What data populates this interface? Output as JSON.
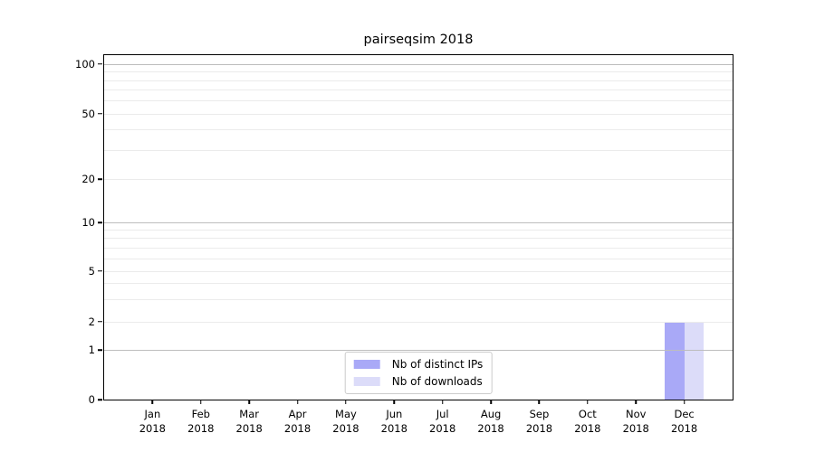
{
  "title": "pairseqsim 2018",
  "colors": {
    "bar_distinct_ips": "#a9a9f7",
    "bar_downloads": "#dcdcf9",
    "grid_major": "#bdbdbd",
    "grid_minor": "#ebebeb",
    "spine": "#000000",
    "legend_border": "#cccccc",
    "background": "#ffffff"
  },
  "legend": {
    "items": [
      {
        "label": "Nb of distinct IPs"
      },
      {
        "label": "Nb of downloads"
      }
    ]
  },
  "chart_data": {
    "type": "bar",
    "title": "pairseqsim 2018",
    "xlabel": "",
    "ylabel": "",
    "categories": [
      "Jan",
      "Feb",
      "Mar",
      "Apr",
      "May",
      "Jun",
      "Jul",
      "Aug",
      "Sep",
      "Oct",
      "Nov",
      "Dec"
    ],
    "year": "2018",
    "yscale": "symlog",
    "ylim": [
      0,
      115
    ],
    "yticks_labeled": [
      0,
      1,
      2,
      5,
      10,
      20,
      50,
      100
    ],
    "yticks_minor": [
      3,
      4,
      6,
      7,
      8,
      9,
      30,
      40,
      60,
      70,
      80,
      90
    ],
    "grid": true,
    "legend_position": "lower center",
    "series": [
      {
        "name": "Nb of distinct IPs",
        "color": "#a9a9f7",
        "values": [
          0,
          0,
          0,
          0,
          0,
          0,
          0,
          0,
          0,
          0,
          0,
          2
        ]
      },
      {
        "name": "Nb of downloads",
        "color": "#dcdcf9",
        "values": [
          0,
          0,
          0,
          0,
          0,
          0,
          0,
          0,
          0,
          0,
          0,
          2
        ]
      }
    ]
  }
}
